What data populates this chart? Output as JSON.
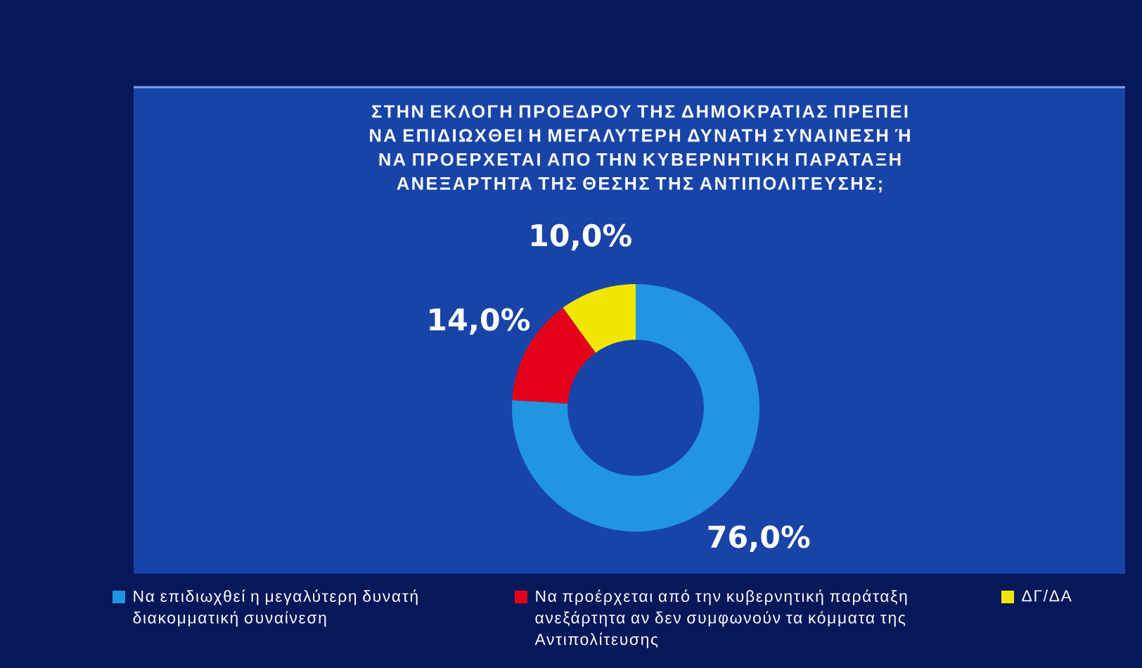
{
  "chart_data": {
    "type": "donut",
    "title": "ΣΤΗΝ ΕΚΛΟΓΗ ΠΡΟΕΔΡΟΥ ΤΗΣ ΔΗΜΟΚΡΑΤΙΑΣ ΠΡΕΠΕΙ ΝΑ ΕΠΙΔΙΩΧΘΕΙ Η ΜΕΓΑΛΥΤΕΡΗ ΔΥΝΑΤΗ ΣΥΝΑΙΝΕΣΗ Ή ΝΑ ΠΡΟΕΡΧΕΤΑΙ ΑΠΟ ΤΗΝ ΚΥΒΕΡΝΗΤΙΚΗ ΠΑΡΑΤΑΞΗ ΑΝΕΞΑΡΤΗΤΑ ΤΗΣ ΘΕΣΗΣ ΤΗΣ ΑΝΤΙΠΟΛΙΤΕΥΣΗΣ;",
    "categories": [
      "Να επιδιωχθεί η μεγαλύτερη δυνατή διακομματική συναίνεση",
      "Να προέρχεται από την κυβερνητική παράταξη ανεξάρτητα αν δεν συμφωνούν τα κόμματα της Αντιπολίτευσης",
      "ΔΓ/ΔΑ"
    ],
    "values": [
      76,
      14,
      10
    ],
    "colors": [
      "#2196e0",
      "#e2001a",
      "#f1e600"
    ],
    "value_labels": [
      "76,0%",
      "14,0%",
      "10,0%"
    ],
    "legend": "bottom"
  }
}
